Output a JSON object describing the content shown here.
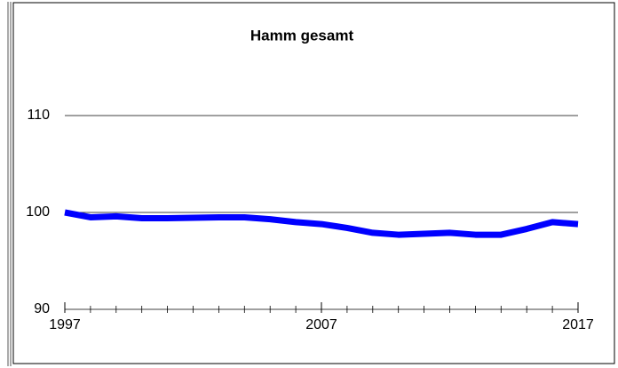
{
  "chart_data": {
    "type": "line",
    "title": "Hamm gesamt",
    "x": [
      1997,
      1998,
      1999,
      2000,
      2001,
      2002,
      2003,
      2004,
      2005,
      2006,
      2007,
      2008,
      2009,
      2010,
      2011,
      2012,
      2013,
      2014,
      2015,
      2016,
      2017
    ],
    "series": [
      {
        "name": "Hamm gesamt",
        "color": "#0000ff",
        "values": [
          100.0,
          99.5,
          99.6,
          99.4,
          99.4,
          99.45,
          99.5,
          99.5,
          99.3,
          99.0,
          98.8,
          98.4,
          97.9,
          97.7,
          97.8,
          97.9,
          97.7,
          97.7,
          98.3,
          99.0,
          98.8
        ]
      }
    ],
    "xlim": [
      1997,
      2017
    ],
    "xticks": [
      1997,
      2007,
      2017
    ],
    "ylim": [
      90,
      115
    ],
    "yticks": [
      90,
      100,
      110
    ],
    "grid": true
  }
}
